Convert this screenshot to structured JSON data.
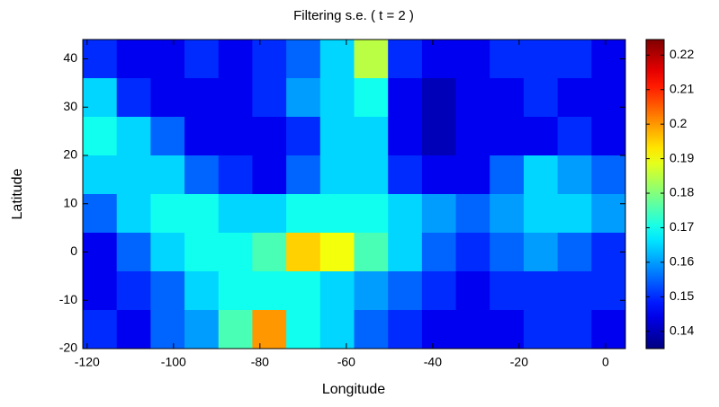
{
  "chart_data": {
    "type": "heatmap",
    "title": "Filtering s.e. ( t = 2 )",
    "x_label": "Longitude",
    "y_label": "Latitude",
    "x": [
      -117.1,
      -109.2,
      -101.4,
      -93.5,
      -85.7,
      -77.8,
      -70.0,
      -62.1,
      -54.3,
      -46.4,
      -38.6,
      -30.7,
      -22.9,
      -15.0,
      -7.2,
      0.7
    ],
    "y": [
      40,
      32,
      24,
      16,
      8,
      0,
      -8,
      -16
    ],
    "values": [
      [
        0.15,
        0.145,
        0.145,
        0.15,
        0.145,
        0.15,
        0.155,
        0.165,
        0.185,
        0.15,
        0.145,
        0.145,
        0.15,
        0.15,
        0.15,
        0.145
      ],
      [
        0.165,
        0.15,
        0.145,
        0.145,
        0.145,
        0.15,
        0.16,
        0.165,
        0.17,
        0.145,
        0.14,
        0.145,
        0.145,
        0.15,
        0.145,
        0.145
      ],
      [
        0.17,
        0.165,
        0.155,
        0.145,
        0.145,
        0.145,
        0.15,
        0.165,
        0.165,
        0.145,
        0.14,
        0.145,
        0.145,
        0.145,
        0.15,
        0.145
      ],
      [
        0.165,
        0.165,
        0.165,
        0.155,
        0.15,
        0.145,
        0.155,
        0.165,
        0.165,
        0.15,
        0.145,
        0.145,
        0.155,
        0.165,
        0.16,
        0.155
      ],
      [
        0.155,
        0.165,
        0.17,
        0.17,
        0.165,
        0.165,
        0.17,
        0.17,
        0.17,
        0.165,
        0.16,
        0.155,
        0.16,
        0.165,
        0.165,
        0.16
      ],
      [
        0.145,
        0.155,
        0.165,
        0.17,
        0.17,
        0.175,
        0.195,
        0.19,
        0.175,
        0.165,
        0.155,
        0.15,
        0.155,
        0.16,
        0.155,
        0.15
      ],
      [
        0.145,
        0.15,
        0.155,
        0.165,
        0.17,
        0.17,
        0.17,
        0.165,
        0.16,
        0.155,
        0.15,
        0.145,
        0.15,
        0.15,
        0.15,
        0.15
      ],
      [
        0.15,
        0.145,
        0.155,
        0.16,
        0.175,
        0.2,
        0.17,
        0.165,
        0.155,
        0.15,
        0.145,
        0.145,
        0.145,
        0.15,
        0.15,
        0.145
      ]
    ],
    "xlim": [
      -121,
      4.6
    ],
    "ylim": [
      -20,
      44
    ],
    "xticks": [
      -120,
      -100,
      -80,
      -60,
      -40,
      -20,
      0
    ],
    "yticks": [
      -20,
      -10,
      0,
      10,
      20,
      30,
      40
    ],
    "colormap": "jet",
    "clim": [
      0.135,
      0.2245
    ],
    "cticks": [
      0.14,
      0.15,
      0.16,
      0.17,
      0.18,
      0.19,
      0.2,
      0.21,
      0.22
    ]
  }
}
